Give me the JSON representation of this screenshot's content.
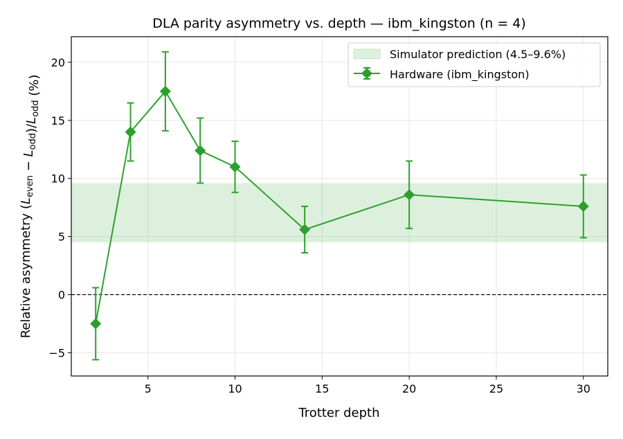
{
  "chart_data": {
    "type": "line",
    "title": "DLA parity asymmetry vs. depth — ibm_kingston (n = 4)",
    "xlabel": "Trotter depth",
    "ylabel": "Relative asymmetry (L_even − L_odd)/L_odd (%)",
    "xlim": [
      0.6,
      31.4
    ],
    "ylim": [
      -7.0,
      22.2
    ],
    "xticks": [
      5,
      10,
      15,
      20,
      25,
      30
    ],
    "yticks": [
      -5,
      0,
      5,
      10,
      15,
      20
    ],
    "ytick_labels": [
      "−5",
      "0",
      "5",
      "10",
      "15",
      "20"
    ],
    "grid": true,
    "legend_position": "top-right",
    "reference_line": {
      "y": 0,
      "style": "dashed",
      "color": "#000000"
    },
    "band": {
      "name": "Simulator prediction (4.5–9.6%)",
      "low": 4.5,
      "high": 9.6,
      "color": "#2ca02c"
    },
    "series": [
      {
        "name": "Hardware (ibm_kingston)",
        "color": "#2ca02c",
        "marker": "diamond",
        "x": [
          2,
          4,
          6,
          8,
          10,
          14,
          20,
          30
        ],
        "y": [
          -2.5,
          14.0,
          17.5,
          12.4,
          11.0,
          5.6,
          8.6,
          7.6
        ],
        "yerr": [
          3.1,
          2.5,
          3.4,
          2.8,
          2.2,
          2.0,
          2.9,
          2.7
        ]
      }
    ]
  }
}
